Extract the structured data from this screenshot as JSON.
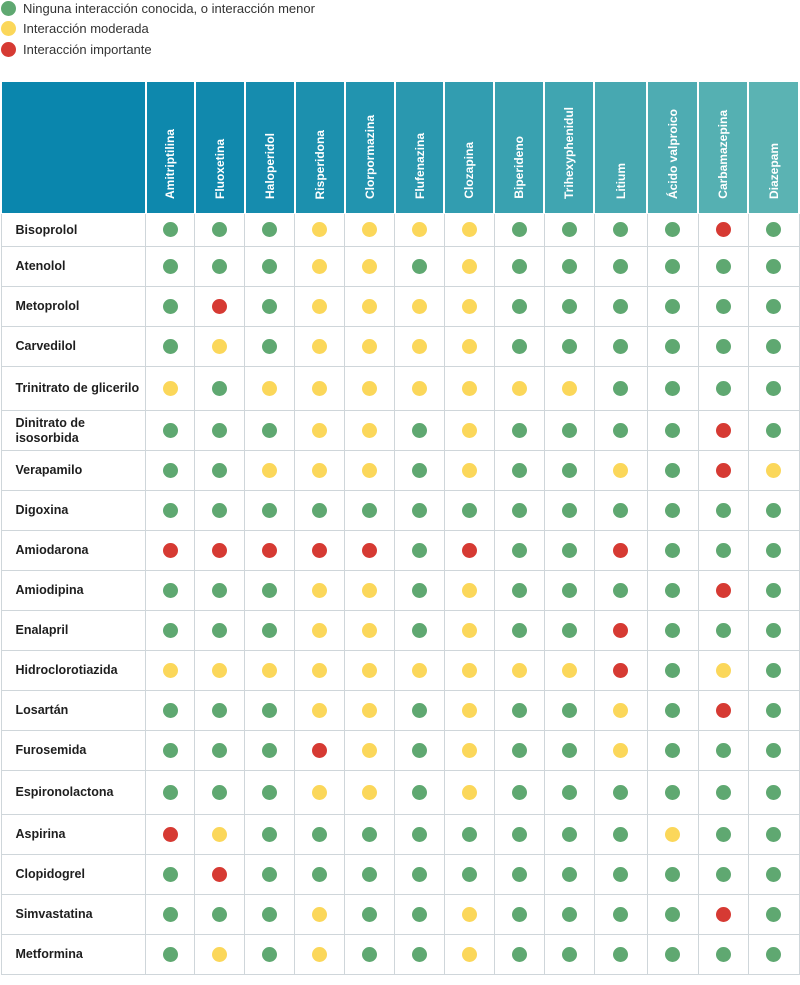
{
  "colors": {
    "green": "#5fa871",
    "yellow": "#fbd75a",
    "red": "#d63a33"
  },
  "legend": [
    {
      "level": "green",
      "label": "Ninguna interacción conocida, o interacción menor"
    },
    {
      "level": "yellow",
      "label": "Interacción moderada"
    },
    {
      "level": "red",
      "label": "Interacción importante"
    }
  ],
  "columns": [
    {
      "label": "Amitriptilina",
      "color": "#0e88ad"
    },
    {
      "label": "Fluoxetina",
      "color": "#1189ad"
    },
    {
      "label": "Haloperidol",
      "color": "#168cae"
    },
    {
      "label": "Risperidona",
      "color": "#1c90ae"
    },
    {
      "label": "Clorpormazina",
      "color": "#2294af"
    },
    {
      "label": "Flufenazina",
      "color": "#2a98af"
    },
    {
      "label": "Clozapina",
      "color": "#329db0"
    },
    {
      "label": "Biperideno",
      "color": "#39a1b0"
    },
    {
      "label": "Trihexyphenidul",
      "color": "#40a5b1"
    },
    {
      "label": "Litium",
      "color": "#47a8b1"
    },
    {
      "label": "Ácido valproico",
      "color": "#4eacb2"
    },
    {
      "label": "Carbamazepina",
      "color": "#55b0b2"
    },
    {
      "label": "Diazepam",
      "color": "#5bb3b3"
    }
  ],
  "rows": [
    {
      "label": "Bisoprolol",
      "cells": [
        "green",
        "green",
        "green",
        "yellow",
        "yellow",
        "yellow",
        "yellow",
        "green",
        "green",
        "green",
        "green",
        "red",
        "green"
      ]
    },
    {
      "label": "Atenolol",
      "cells": [
        "green",
        "green",
        "green",
        "yellow",
        "yellow",
        "green",
        "yellow",
        "green",
        "green",
        "green",
        "green",
        "green",
        "green"
      ]
    },
    {
      "label": "Metoprolol",
      "cells": [
        "green",
        "red",
        "green",
        "yellow",
        "yellow",
        "yellow",
        "yellow",
        "green",
        "green",
        "green",
        "green",
        "green",
        "green"
      ]
    },
    {
      "label": "Carvedilol",
      "cells": [
        "green",
        "yellow",
        "green",
        "yellow",
        "yellow",
        "yellow",
        "yellow",
        "green",
        "green",
        "green",
        "green",
        "green",
        "green"
      ]
    },
    {
      "label": "Trinitrato de glicerilo",
      "cells": [
        "yellow",
        "green",
        "yellow",
        "yellow",
        "yellow",
        "yellow",
        "yellow",
        "yellow",
        "yellow",
        "green",
        "green",
        "green",
        "green"
      ]
    },
    {
      "label": "Dinitrato de isosorbida",
      "cells": [
        "green",
        "green",
        "green",
        "yellow",
        "yellow",
        "green",
        "yellow",
        "green",
        "green",
        "green",
        "green",
        "red",
        "green"
      ]
    },
    {
      "label": "Verapamilo",
      "cells": [
        "green",
        "green",
        "yellow",
        "yellow",
        "yellow",
        "green",
        "yellow",
        "green",
        "green",
        "yellow",
        "green",
        "red",
        "yellow"
      ]
    },
    {
      "label": "Digoxina",
      "cells": [
        "green",
        "green",
        "green",
        "green",
        "green",
        "green",
        "green",
        "green",
        "green",
        "green",
        "green",
        "green",
        "green"
      ]
    },
    {
      "label": "Amiodarona",
      "cells": [
        "red",
        "red",
        "red",
        "red",
        "red",
        "green",
        "red",
        "green",
        "green",
        "red",
        "green",
        "green",
        "green"
      ]
    },
    {
      "label": "Amiodipina",
      "cells": [
        "green",
        "green",
        "green",
        "yellow",
        "yellow",
        "green",
        "yellow",
        "green",
        "green",
        "green",
        "green",
        "red",
        "green"
      ]
    },
    {
      "label": "Enalapril",
      "cells": [
        "green",
        "green",
        "green",
        "yellow",
        "yellow",
        "green",
        "yellow",
        "green",
        "green",
        "red",
        "green",
        "green",
        "green"
      ]
    },
    {
      "label": "Hidroclorotiazida",
      "cells": [
        "yellow",
        "yellow",
        "yellow",
        "yellow",
        "yellow",
        "yellow",
        "yellow",
        "yellow",
        "yellow",
        "red",
        "green",
        "yellow",
        "green"
      ]
    },
    {
      "label": "Losartán",
      "cells": [
        "green",
        "green",
        "green",
        "yellow",
        "yellow",
        "green",
        "yellow",
        "green",
        "green",
        "yellow",
        "green",
        "red",
        "green"
      ]
    },
    {
      "label": "Furosemida",
      "cells": [
        "green",
        "green",
        "green",
        "red",
        "yellow",
        "green",
        "yellow",
        "green",
        "green",
        "yellow",
        "green",
        "green",
        "green"
      ]
    },
    {
      "label": "Espironolactona",
      "cells": [
        "green",
        "green",
        "green",
        "yellow",
        "yellow",
        "green",
        "yellow",
        "green",
        "green",
        "green",
        "green",
        "green",
        "green"
      ]
    },
    {
      "label": "Aspirina",
      "cells": [
        "red",
        "yellow",
        "green",
        "green",
        "green",
        "green",
        "green",
        "green",
        "green",
        "green",
        "yellow",
        "green",
        "green"
      ]
    },
    {
      "label": "Clopidogrel",
      "cells": [
        "green",
        "red",
        "green",
        "green",
        "green",
        "green",
        "green",
        "green",
        "green",
        "green",
        "green",
        "green",
        "green"
      ]
    },
    {
      "label": "Simvastatina",
      "cells": [
        "green",
        "green",
        "green",
        "yellow",
        "green",
        "green",
        "yellow",
        "green",
        "green",
        "green",
        "green",
        "red",
        "green"
      ]
    },
    {
      "label": "Metformina",
      "cells": [
        "green",
        "yellow",
        "green",
        "yellow",
        "green",
        "green",
        "yellow",
        "green",
        "green",
        "green",
        "green",
        "green",
        "green"
      ]
    }
  ]
}
